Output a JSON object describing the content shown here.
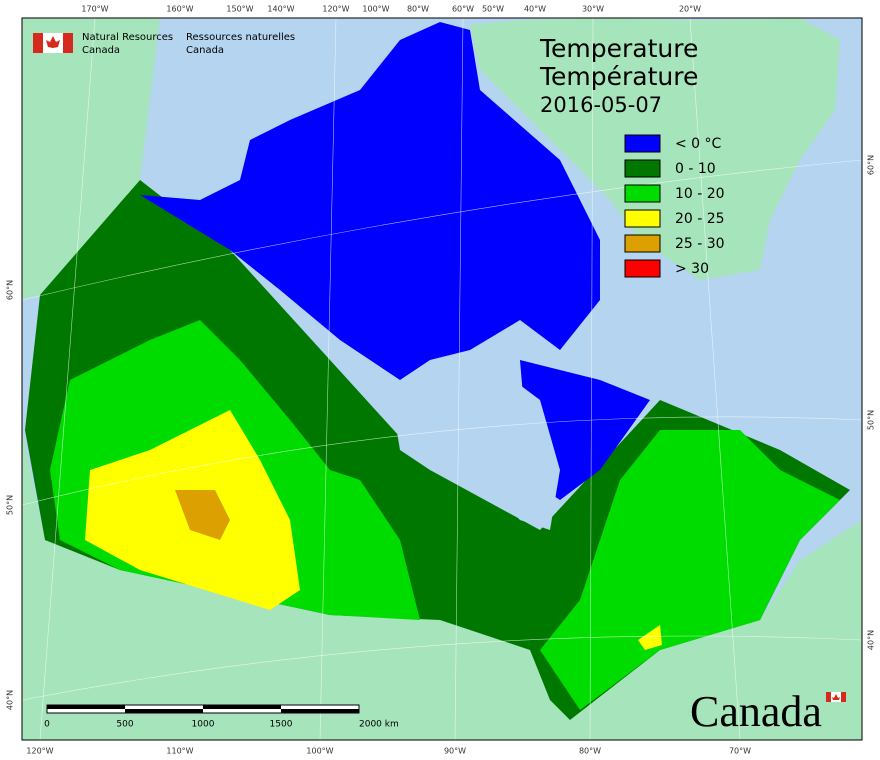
{
  "agency": {
    "en_line1": "Natural Resources",
    "en_line2": "Canada",
    "fr_line1": "Ressources naturelles",
    "fr_line2": "Canada"
  },
  "title": {
    "en": "Temperature",
    "fr": "Température",
    "date": "2016-05-07"
  },
  "legend": [
    {
      "label": "< 0 °C",
      "color": "#0000ff"
    },
    {
      "label": "0 - 10",
      "color": "#007800"
    },
    {
      "label": "10 - 20",
      "color": "#00dc00"
    },
    {
      "label": "20 - 25",
      "color": "#ffff00"
    },
    {
      "label": "25 - 30",
      "color": "#dca000"
    },
    {
      "label": "> 30",
      "color": "#ff0000"
    }
  ],
  "graticule": {
    "top": [
      "170°W",
      "160°W",
      "150°W",
      "140°W",
      "120°W",
      "100°W",
      "80°W",
      "60°W",
      "50°W",
      "40°W",
      "30°W",
      "20°W"
    ],
    "bottom": [
      "120°W",
      "110°W",
      "100°W",
      "90°W",
      "80°W",
      "70°W"
    ],
    "left": [
      "60°N",
      "50°N",
      "40°N"
    ],
    "right": [
      "60°N",
      "50°N",
      "40°N"
    ]
  },
  "scalebar": {
    "labels": [
      "0",
      "500",
      "1000",
      "1500",
      "2000 km"
    ]
  },
  "wordmark": "Canada"
}
